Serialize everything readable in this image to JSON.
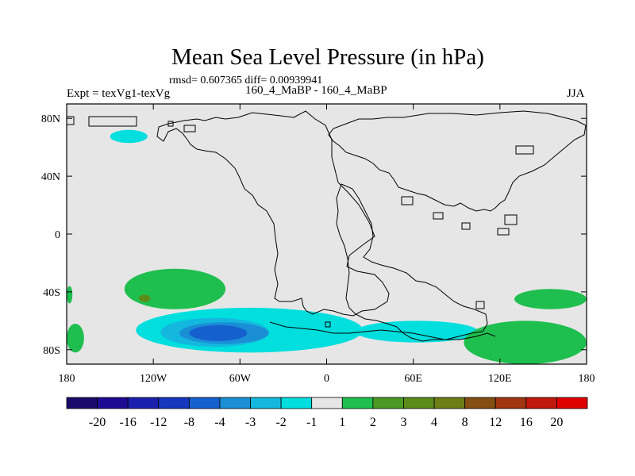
{
  "title": "Mean Sea Level Pressure (in hPa)",
  "stats_line": "rmsd= 0.607365 diff= 0.00939941",
  "left_label": "Expt = texVg1-texVg",
  "center_label": "160_4_MaBP - 160_4_MaBP",
  "right_label": "JJA",
  "colors": {
    "land_background": "#e6e6e6",
    "coastline": "#000000"
  },
  "chart_data": {
    "type": "heatmap",
    "title": "Mean Sea Level Pressure (in hPa)",
    "xlabel": "",
    "ylabel": "",
    "xlim": [
      -180,
      180
    ],
    "ylim": [
      -90,
      90
    ],
    "x_ticks": [
      {
        "value": -180,
        "label": "180"
      },
      {
        "value": -120,
        "label": "120W"
      },
      {
        "value": -60,
        "label": "60W"
      },
      {
        "value": 0,
        "label": "0"
      },
      {
        "value": 60,
        "label": "60E"
      },
      {
        "value": 120,
        "label": "120E"
      },
      {
        "value": 180,
        "label": "180"
      }
    ],
    "y_ticks": [
      {
        "value": 80,
        "label": "80N"
      },
      {
        "value": 40,
        "label": "40N"
      },
      {
        "value": 0,
        "label": "0"
      },
      {
        "value": -40,
        "label": "40S"
      },
      {
        "value": -80,
        "label": "80S"
      }
    ],
    "colorbar": {
      "levels": [
        "-20",
        "-16",
        "-12",
        "-8",
        "-4",
        "-3",
        "-2",
        "-1",
        "1",
        "2",
        "3",
        "4",
        "8",
        "12",
        "16",
        "20"
      ],
      "colors": [
        "#1a0a6b",
        "#1f0b93",
        "#1a1fae",
        "#1537c0",
        "#1560cf",
        "#1a8fd6",
        "#14b8df",
        "#00dede",
        "#e6e6e6",
        "#1fbf4f",
        "#4a9a23",
        "#5c8b1a",
        "#6e7e16",
        "#854e12",
        "#a03510",
        "#c0180c",
        "#e00000"
      ]
    },
    "anomaly_regions": [
      {
        "level": "-1 to -2",
        "color": "#00dede",
        "region": "Arctic, near 150W 68N",
        "lon_range": [
          -150,
          -124
        ],
        "lat_range": [
          63,
          72
        ]
      },
      {
        "level": "-1 to -2",
        "color": "#00dede",
        "region": "Southern Ocean, 130W-20E",
        "lon_range": [
          -132,
          25
        ],
        "lat_range": [
          -82,
          -51
        ]
      },
      {
        "level": "-2 to -3",
        "color": "#14b8df",
        "region": "Southern Ocean, 115W-40W",
        "lon_range": [
          -115,
          -40
        ],
        "lat_range": [
          -78,
          -58
        ]
      },
      {
        "level": "-3 to -4",
        "color": "#1a8fd6",
        "region": "Southern Ocean, 100W-40W",
        "lon_range": [
          -102,
          -40
        ],
        "lat_range": [
          -76,
          -61
        ]
      },
      {
        "level": "-4 to -8",
        "color": "#1560cf",
        "region": "Southern Ocean, 95W-55W",
        "lon_range": [
          -95,
          -55
        ],
        "lat_range": [
          -74,
          -63
        ]
      },
      {
        "level": "-1 to -2",
        "color": "#00dede",
        "region": "South Atlantic / Indian Ocean, 20E-105E",
        "lon_range": [
          20,
          105
        ],
        "lat_range": [
          -75,
          -60
        ]
      },
      {
        "level": "1 to 2",
        "color": "#1fbf4f",
        "region": "South Pacific, 140W-70W",
        "lon_range": [
          -140,
          -70
        ],
        "lat_range": [
          -52,
          -24
        ]
      },
      {
        "level": "3 to 4",
        "color": "#5c8b1a",
        "region": "South Pacific, near 125W 45S",
        "lon_range": [
          -130,
          -122
        ],
        "lat_range": [
          -47,
          -42
        ]
      },
      {
        "level": "1 to 2",
        "color": "#1fbf4f",
        "region": "Southern Ocean, 130E-180",
        "lon_range": [
          130,
          180
        ],
        "lat_range": [
          -52,
          -38
        ]
      },
      {
        "level": "1 to 2",
        "color": "#1fbf4f",
        "region": "Southern Ocean, 95E-180",
        "lon_range": [
          95,
          180
        ],
        "lat_range": [
          -90,
          -60
        ]
      },
      {
        "level": "1 to 2",
        "color": "#1fbf4f",
        "region": "Southern Ocean, 180-170W",
        "lon_range": [
          -180,
          -168
        ],
        "lat_range": [
          -82,
          -62
        ]
      },
      {
        "level": "1 to 2",
        "color": "#1fbf4f",
        "region": "South Pacific, 180",
        "lon_range": [
          -180,
          -176
        ],
        "lat_range": [
          -48,
          -36
        ]
      }
    ]
  }
}
